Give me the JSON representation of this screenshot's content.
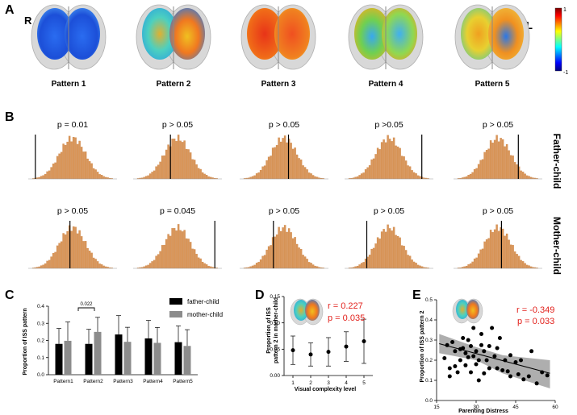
{
  "panel_A": {
    "letter": "A",
    "hemisphere_left_mark": "R",
    "hemisphere_right_mark": "L",
    "patterns": [
      "Pattern 1",
      "Pattern 2",
      "Pattern 3",
      "Pattern 4",
      "Pattern 5"
    ],
    "colorbar": {
      "max_label": "1",
      "min_label": "-1"
    }
  },
  "panel_B": {
    "letter": "B",
    "row_labels": [
      "Father-child",
      "Mother-child"
    ],
    "father_p": [
      "p = 0.01",
      "p > 0.05",
      "p > 0.05",
      "p >0.05",
      "p > 0.05"
    ],
    "mother_p": [
      "p > 0.05",
      "p = 0.045",
      "p > 0.05",
      "p > 0.05",
      "p > 0.05"
    ],
    "father_line_pos": [
      0.08,
      0.42,
      0.55,
      0.87,
      0.73
    ],
    "mother_line_pos": [
      0.47,
      0.92,
      0.38,
      0.25,
      0.54
    ]
  },
  "panel_C": {
    "letter": "C",
    "ylabel": "Proportion of ISS pattern",
    "ytick_labels": [
      "0.0",
      "0.1",
      "0.2",
      "0.3",
      "0.4"
    ],
    "legend": [
      "father-child",
      "mother-child"
    ],
    "sig_label": "0.022",
    "bar_colors": [
      "#000000",
      "#8c8c8c"
    ],
    "chart_data": {
      "type": "bar",
      "categories": [
        "Pattern1",
        "Pattern2",
        "Pattern3",
        "Pattern4",
        "Pattern5"
      ],
      "series": [
        {
          "name": "father-child",
          "values": [
            0.18,
            0.18,
            0.235,
            0.212,
            0.19
          ],
          "err": [
            0.09,
            0.085,
            0.11,
            0.105,
            0.095
          ]
        },
        {
          "name": "mother-child",
          "values": [
            0.198,
            0.25,
            0.192,
            0.186,
            0.168
          ],
          "err": [
            0.11,
            0.085,
            0.085,
            0.09,
            0.095
          ]
        }
      ],
      "ylim": [
        0,
        0.4
      ]
    }
  },
  "panel_D": {
    "letter": "D",
    "ylabel_line1": "Proportion of ISS",
    "ylabel_line2": "pattern 2 in mother-child",
    "xlabel": "Visual complexity level",
    "ytick_labels": [
      "0.00",
      "0.05",
      "0.10",
      "0.15"
    ],
    "r_text": "r = 0.227",
    "p_text": "p = 0.035",
    "chart_data": {
      "type": "scatter",
      "x": [
        1,
        2,
        3,
        4,
        5
      ],
      "y": [
        0.048,
        0.04,
        0.045,
        0.055,
        0.065
      ],
      "err": [
        0.027,
        0.022,
        0.027,
        0.028,
        0.042
      ],
      "ylim": [
        0,
        0.15
      ]
    }
  },
  "panel_E": {
    "letter": "E",
    "ylabel": "Proportion of ISS pattern 2",
    "xlabel": "Parenting Distress",
    "xtick_labels": [
      "15",
      "30",
      "45",
      "60"
    ],
    "ytick_labels": [
      "0.0",
      "0.1",
      "0.2",
      "0.3",
      "0.4",
      "0.5"
    ],
    "r_text": "r = -0.349",
    "p_text": "p = 0.033",
    "chart_data": {
      "type": "scatter",
      "x_range": [
        15,
        60
      ],
      "y_range": [
        0,
        0.5
      ],
      "fit": {
        "x0": 15,
        "y0": 0.285,
        "x1": 60,
        "y1": 0.13
      },
      "points": [
        [
          18,
          0.21
        ],
        [
          19,
          0.275
        ],
        [
          20,
          0.16
        ],
        [
          20,
          0.12
        ],
        [
          21,
          0.29
        ],
        [
          22,
          0.245
        ],
        [
          22,
          0.17
        ],
        [
          23,
          0.14
        ],
        [
          24,
          0.2
        ],
        [
          24,
          0.255
        ],
        [
          25,
          0.31
        ],
        [
          25,
          0.26
        ],
        [
          26,
          0.235
        ],
        [
          26,
          0.175
        ],
        [
          27,
          0.3
        ],
        [
          27,
          0.215
        ],
        [
          28,
          0.27
        ],
        [
          28,
          0.14
        ],
        [
          29,
          0.36
        ],
        [
          29,
          0.22
        ],
        [
          30,
          0.245
        ],
        [
          30,
          0.18
        ],
        [
          31,
          0.2
        ],
        [
          31,
          0.1
        ],
        [
          32,
          0.33
        ],
        [
          32,
          0.275
        ],
        [
          33,
          0.245
        ],
        [
          33,
          0.135
        ],
        [
          34,
          0.2
        ],
        [
          35,
          0.27
        ],
        [
          35,
          0.16
        ],
        [
          36,
          0.36
        ],
        [
          37,
          0.22
        ],
        [
          38,
          0.26
        ],
        [
          38,
          0.16
        ],
        [
          39,
          0.31
        ],
        [
          40,
          0.15
        ],
        [
          41,
          0.2
        ],
        [
          42,
          0.145
        ],
        [
          43,
          0.225
        ],
        [
          43,
          0.12
        ],
        [
          45,
          0.19
        ],
        [
          46,
          0.13
        ],
        [
          47,
          0.2
        ],
        [
          48,
          0.105
        ],
        [
          50,
          0.12
        ],
        [
          51,
          0.245
        ],
        [
          53,
          0.085
        ],
        [
          55,
          0.14
        ],
        [
          57,
          0.125
        ]
      ]
    }
  }
}
